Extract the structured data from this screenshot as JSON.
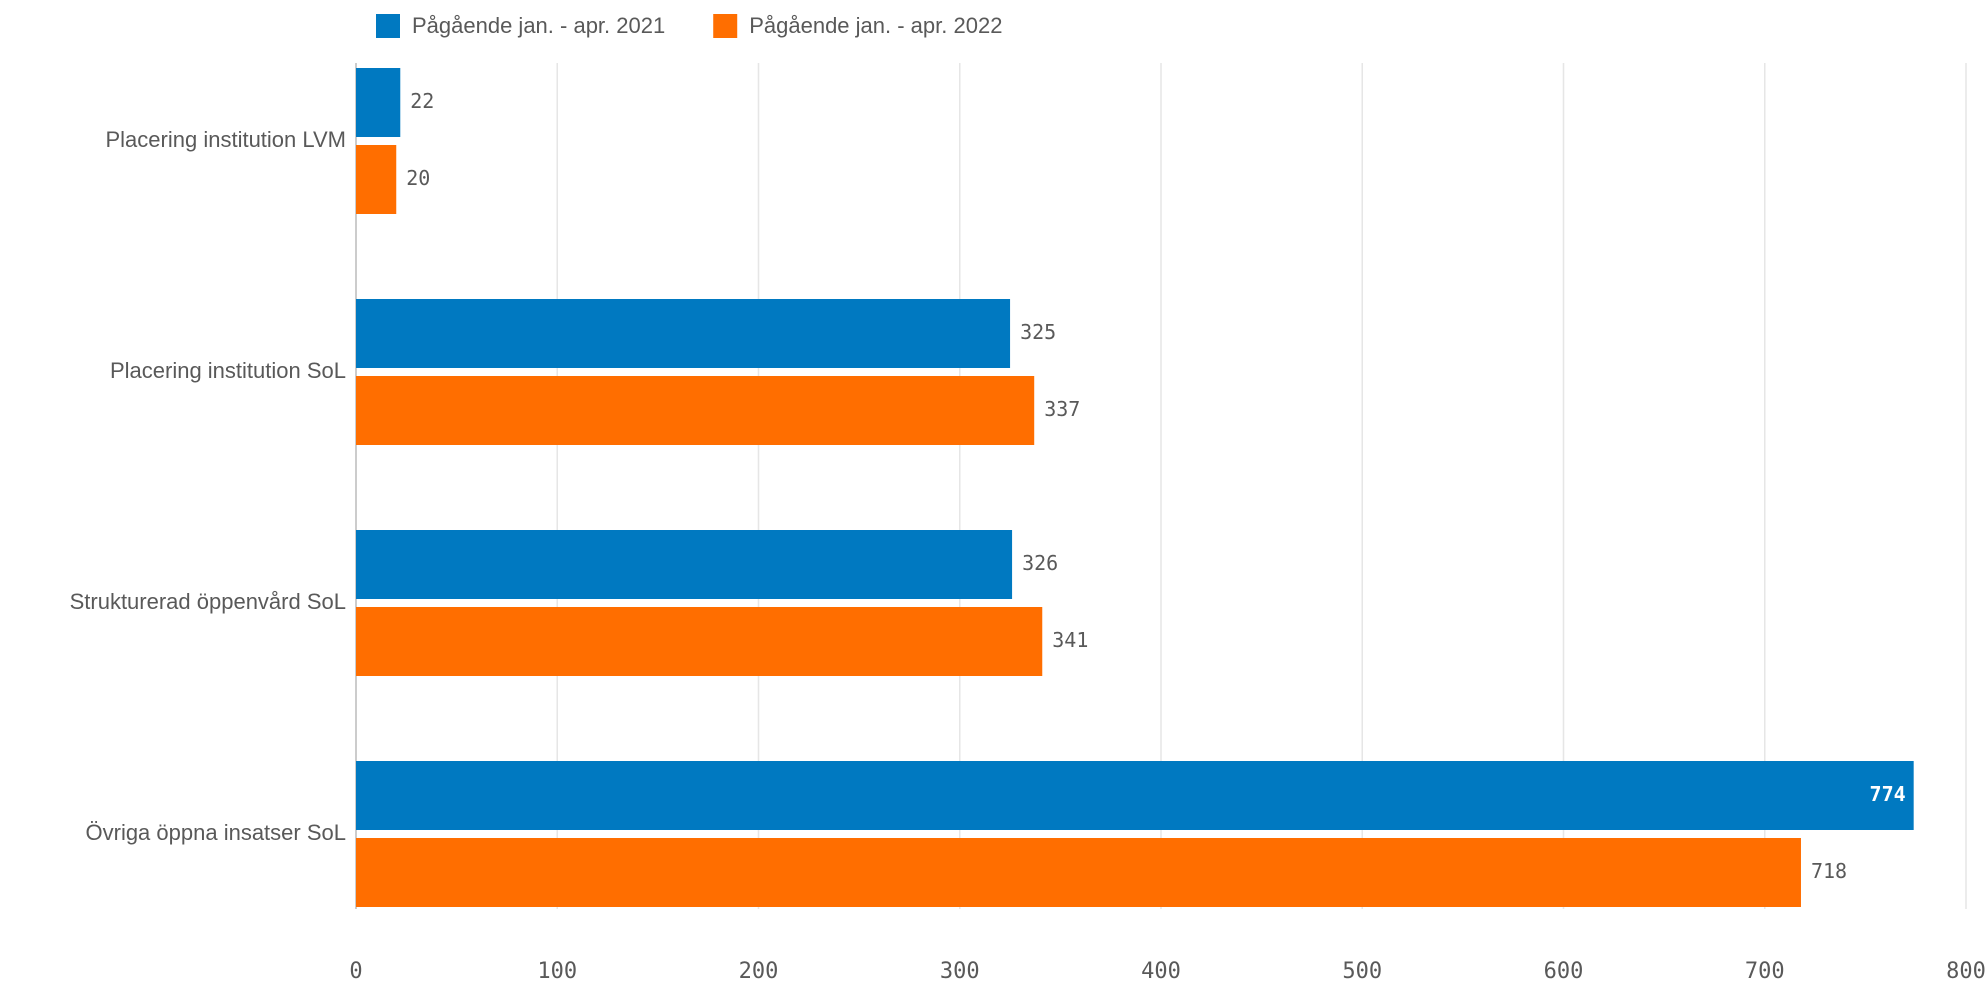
{
  "chart_data": {
    "type": "bar",
    "orientation": "horizontal",
    "categories": [
      "Placering institution LVM",
      "Placering institution SoL",
      "Strukturerad öppenvård SoL",
      "Övriga öppna insatser SoL"
    ],
    "series": [
      {
        "name": "Pågående jan. - apr. 2021",
        "color": "#0079c1",
        "values": [
          22,
          325,
          326,
          774
        ]
      },
      {
        "name": "Pågående jan. - apr. 2022",
        "color": "#ff6e00",
        "values": [
          20,
          337,
          341,
          718
        ]
      }
    ],
    "xlim": [
      0,
      800
    ],
    "xticks": [
      0,
      100,
      200,
      300,
      400,
      500,
      600,
      700,
      800
    ],
    "grid": true,
    "legend": "top-left"
  }
}
